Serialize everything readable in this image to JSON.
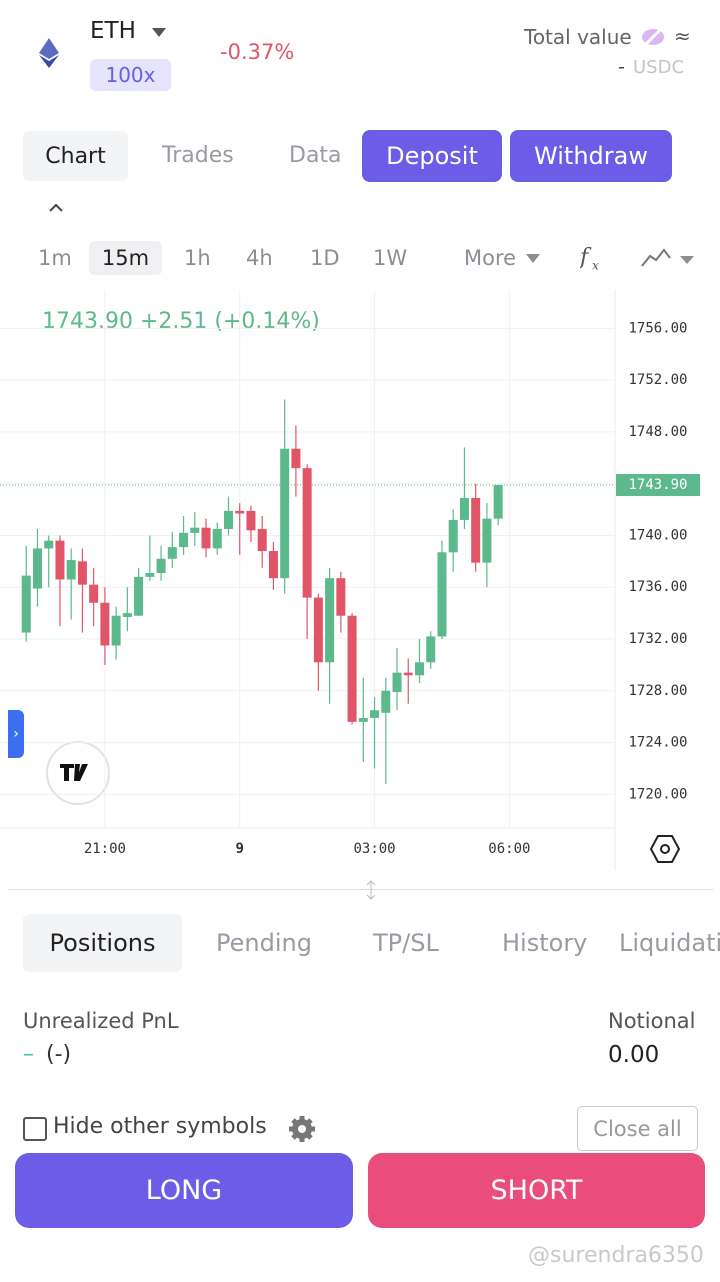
{
  "header": {
    "symbol": "ETH",
    "leverage": "100x",
    "change": "-0.37%",
    "total_value_label": "Total value",
    "approx": "≈",
    "total_value": "-",
    "currency": "USDC"
  },
  "tabs": [
    "Chart",
    "Trades",
    "Data"
  ],
  "buttons": [
    "Deposit",
    "Withdraw"
  ],
  "timeframes": [
    "1m",
    "15m",
    "1h",
    "4h",
    "1D",
    "1W",
    "More"
  ],
  "chart_data": {
    "type": "candlestick",
    "subtitle": "1743.90 +2.51 (+0.14%)",
    "x": [
      0,
      1,
      2,
      3,
      4,
      5,
      6,
      7,
      8,
      9,
      10,
      11,
      12,
      13,
      14,
      15,
      16,
      17,
      18,
      19,
      20,
      21,
      22,
      23,
      24,
      25,
      26,
      27,
      28,
      29,
      30,
      31,
      32,
      33,
      34,
      35,
      36,
      37,
      38,
      39,
      40,
      41,
      42
    ],
    "open": [
      1732.5,
      1735.9,
      1739.0,
      1739.6,
      1736.6,
      1738.0,
      1736.2,
      1734.8,
      1731.5,
      1733.7,
      1733.8,
      1736.8,
      1737.1,
      1738.2,
      1739.1,
      1740.2,
      1740.6,
      1739.0,
      1740.5,
      1741.9,
      1741.9,
      1740.5,
      1738.8,
      1736.7,
      1746.7,
      1745.2,
      1735.2,
      1730.2,
      1736.7,
      1733.8,
      1725.6,
      1725.9,
      1726.3,
      1727.9,
      1729.4,
      1729.2,
      1730.2,
      1732.2,
      1738.7,
      1741.2,
      1742.9,
      1737.9,
      1741.3
    ],
    "high": [
      1739.2,
      1740.5,
      1740.0,
      1740.0,
      1739.0,
      1739.0,
      1737.5,
      1736.0,
      1734.5,
      1736.0,
      1737.5,
      1740.0,
      1739.2,
      1740.3,
      1741.5,
      1741.8,
      1741.3,
      1741.0,
      1743.0,
      1742.5,
      1742.3,
      1741.5,
      1739.5,
      1750.5,
      1748.5,
      1745.5,
      1735.5,
      1737.5,
      1737.2,
      1734.0,
      1729.0,
      1727.5,
      1729.0,
      1731.3,
      1730.5,
      1732.0,
      1732.6,
      1739.6,
      1742.0,
      1746.8,
      1744.0,
      1742.5,
      1743.9
    ],
    "low": [
      1731.8,
      1734.5,
      1736.0,
      1733.0,
      1733.5,
      1732.5,
      1733.0,
      1730.0,
      1730.4,
      1732.6,
      1733.8,
      1736.5,
      1736.5,
      1737.5,
      1738.5,
      1739.2,
      1738.3,
      1738.5,
      1740.0,
      1738.5,
      1739.5,
      1737.5,
      1735.8,
      1735.5,
      1743.0,
      1732.0,
      1728.0,
      1727.0,
      1732.5,
      1725.4,
      1722.5,
      1722.0,
      1720.8,
      1726.5,
      1727.0,
      1728.6,
      1729.7,
      1732.0,
      1737.2,
      1740.5,
      1737.2,
      1736.0,
      1740.8
    ],
    "close": [
      1736.9,
      1739.0,
      1739.6,
      1736.6,
      1738.1,
      1736.2,
      1734.8,
      1731.5,
      1733.8,
      1734.0,
      1736.8,
      1737.1,
      1738.2,
      1739.1,
      1740.2,
      1740.6,
      1739.0,
      1740.5,
      1741.9,
      1741.7,
      1740.4,
      1738.8,
      1736.7,
      1746.7,
      1745.2,
      1735.2,
      1730.2,
      1736.7,
      1733.8,
      1725.6,
      1725.9,
      1726.5,
      1728.0,
      1729.4,
      1729.2,
      1730.2,
      1732.2,
      1738.7,
      1741.2,
      1742.9,
      1737.9,
      1741.3,
      1743.9
    ],
    "up_color": "#5cb98b",
    "down_color": "#e05668",
    "xlim": [
      -0.2,
      52.4
    ],
    "xticks": [
      {
        "value": 7,
        "label": "21:00"
      },
      {
        "value": 19,
        "label": "9"
      },
      {
        "value": 31,
        "label": "03:00"
      },
      {
        "value": 43,
        "label": "06:00"
      }
    ],
    "ylim": [
      1717.4,
      1758.5
    ],
    "yticks": [
      {
        "value": 1720,
        "label": "1720.00"
      },
      {
        "value": 1724,
        "label": "1724.00"
      },
      {
        "value": 1728,
        "label": "1728.00"
      },
      {
        "value": 1732,
        "label": "1732.00"
      },
      {
        "value": 1736,
        "label": "1736.00"
      },
      {
        "value": 1740,
        "label": "1740.00"
      },
      {
        "value": 1744,
        "label": "1744.00"
      },
      {
        "value": 1748,
        "label": "1748.00"
      },
      {
        "value": 1752,
        "label": "1752.00"
      },
      {
        "value": 1756,
        "label": "1756.00"
      }
    ],
    "last_price": {
      "value": 1743.9,
      "label": "1743.90"
    },
    "grid": true
  },
  "position_tabs": [
    "Positions",
    "Pending",
    "TP/SL",
    "History",
    "Liquidation"
  ],
  "summary": {
    "pnl_label": "Unrealized PnL",
    "pnl_value": "–",
    "pnl_pct": "(-)",
    "notional_label": "Notional",
    "notional_value": "0.00"
  },
  "controls": {
    "hide_label": "Hide other symbols",
    "close_all": "Close all"
  },
  "actions": [
    "LONG",
    "SHORT"
  ],
  "watermark": "@surendra6350"
}
